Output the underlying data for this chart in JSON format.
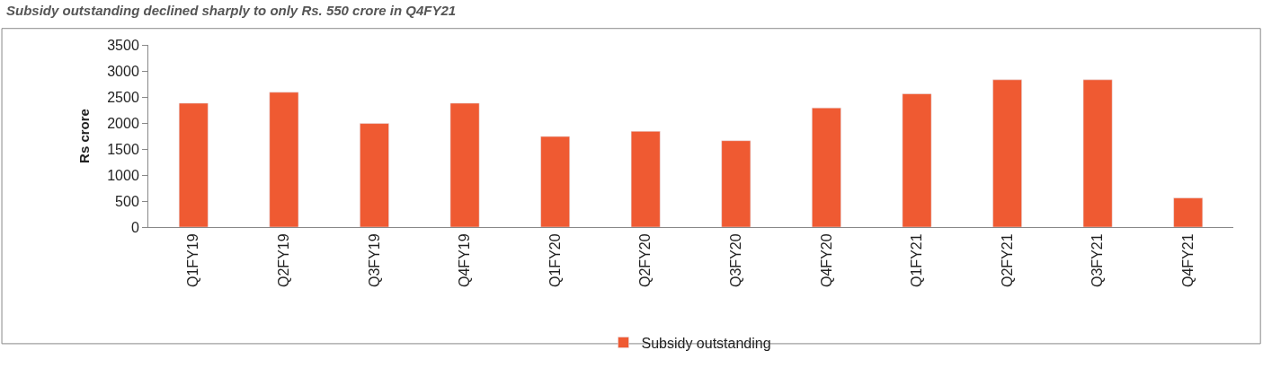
{
  "chart_data": {
    "type": "bar",
    "title": "Subsidy outstanding declined sharply to only Rs. 550 crore in Q4FY21",
    "ylabel": "Rs crore",
    "categories": [
      "Q1FY19",
      "Q2FY19",
      "Q3FY19",
      "Q4FY19",
      "Q1FY20",
      "Q2FY20",
      "Q3FY20",
      "Q4FY20",
      "Q1FY21",
      "Q2FY21",
      "Q3FY21",
      "Q4FY21"
    ],
    "series": [
      {
        "name": "Subsidy outstanding",
        "color": "#ef5a32",
        "values": [
          2380,
          2590,
          1990,
          2380,
          1740,
          1840,
          1660,
          2290,
          2560,
          2830,
          2830,
          560
        ]
      }
    ],
    "ylim": [
      0,
      3500
    ],
    "yticks": [
      0,
      500,
      1000,
      1500,
      2000,
      2500,
      3000,
      3500
    ],
    "legend": "bottom"
  }
}
